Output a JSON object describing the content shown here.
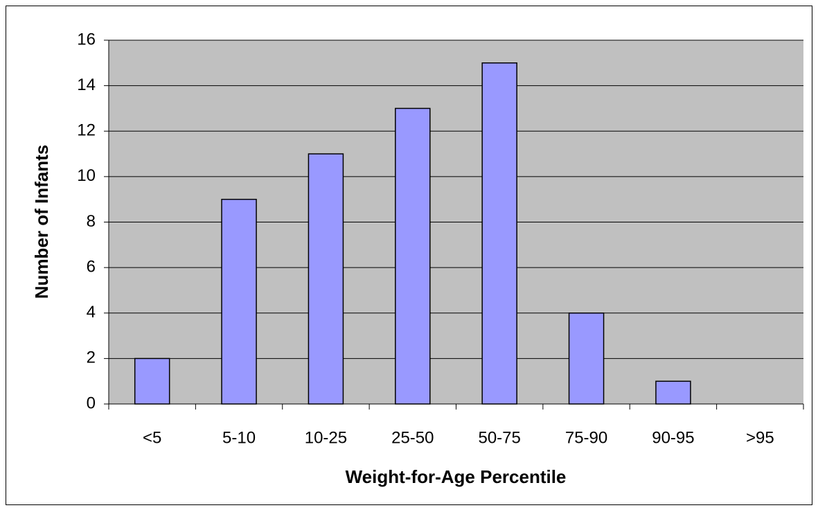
{
  "chart_data": {
    "type": "bar",
    "categories": [
      "<5",
      "5-10",
      "10-25",
      "25-50",
      "50-75",
      "75-90",
      "90-95",
      ">95"
    ],
    "values": [
      2,
      9,
      11,
      13,
      15,
      4,
      1,
      0
    ],
    "color": "#9999ff",
    "x_label": "Weight-for-Age Percentile",
    "y_label": "Number of Infants",
    "ylim": [
      0,
      16
    ],
    "yticks": [
      0,
      2,
      4,
      6,
      8,
      10,
      12,
      14,
      16
    ],
    "grid": true
  }
}
